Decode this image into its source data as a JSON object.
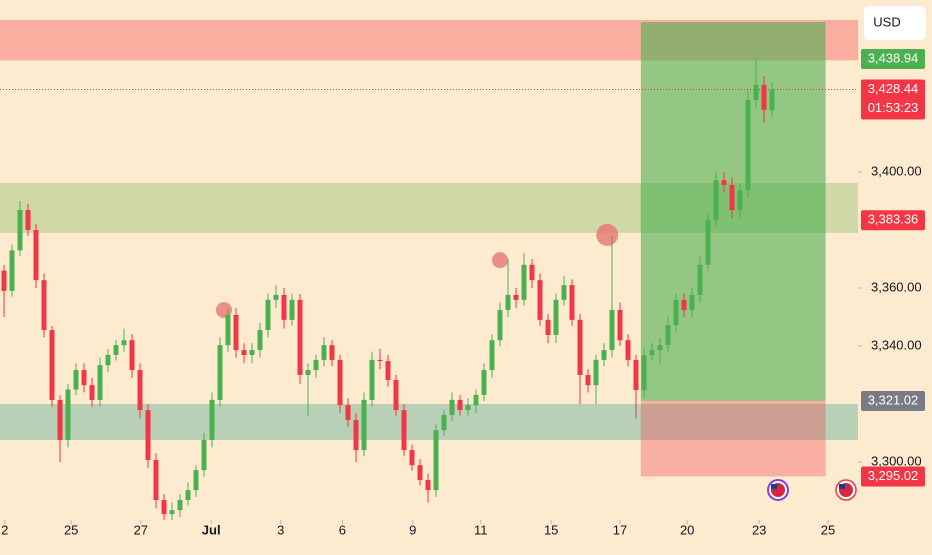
{
  "chart_data": {
    "type": "candlestick",
    "currency": "USD",
    "countdown": "01:53:23",
    "up_color": "#4caf50",
    "down_color": "#f23645",
    "xlim": [
      -0.5,
      106.75
    ],
    "ylim": [
      3280,
      3459.3
    ],
    "xticks": [
      {
        "value": 0.1,
        "label": "2"
      },
      {
        "value": 8.4,
        "label": "25"
      },
      {
        "value": 17.1,
        "label": "27"
      },
      {
        "value": 25.9,
        "label": "Jul"
      },
      {
        "value": 34.6,
        "label": "3"
      },
      {
        "value": 42.3,
        "label": "6"
      },
      {
        "value": 51.1,
        "label": "9"
      },
      {
        "value": 59.6,
        "label": "11"
      },
      {
        "value": 68.4,
        "label": "15"
      },
      {
        "value": 77,
        "label": "17"
      },
      {
        "value": 85.4,
        "label": "20"
      },
      {
        "value": 94.4,
        "label": "23"
      },
      {
        "value": 103,
        "label": "25"
      }
    ],
    "yticks": [
      {
        "value": 3400,
        "label": "3,400.00"
      },
      {
        "value": 3360,
        "label": "3,360.00"
      },
      {
        "value": 3340,
        "label": "3,340.00"
      },
      {
        "value": 3300,
        "label": "3,300.00"
      }
    ],
    "ohlc": [
      [
        3366,
        3368,
        3350,
        3359
      ],
      [
        3359,
        3375,
        3357,
        3373
      ],
      [
        3373,
        3390,
        3371,
        3386.9
      ],
      [
        3386.9,
        3389,
        3378,
        3380
      ],
      [
        3380,
        3382,
        3360,
        3362.7
      ],
      [
        3362.7,
        3365,
        3343,
        3345.5
      ],
      [
        3345.5,
        3347,
        3319,
        3321.4
      ],
      [
        3321.4,
        3323,
        3300,
        3307.6
      ],
      [
        3307.6,
        3327,
        3305,
        3325
      ],
      [
        3325,
        3334,
        3323,
        3331.7
      ],
      [
        3331.7,
        3334,
        3324,
        3326.5
      ],
      [
        3326.5,
        3329,
        3319,
        3321.4
      ],
      [
        3321.4,
        3336,
        3319,
        3333.4
      ],
      [
        3333.4,
        3339,
        3331,
        3336.9
      ],
      [
        3336.9,
        3342,
        3335,
        3340.3
      ],
      [
        3340.3,
        3346,
        3338,
        3342
      ],
      [
        3342,
        3344,
        3329,
        3331.7
      ],
      [
        3331.7,
        3334,
        3315,
        3317.9
      ],
      [
        3317.9,
        3320,
        3298,
        3300.7
      ],
      [
        3300.7,
        3303,
        3284,
        3286.9
      ],
      [
        3286.9,
        3289,
        3280,
        3282
      ],
      [
        3282,
        3286,
        3280,
        3283.4
      ],
      [
        3283.4,
        3289,
        3281,
        3286.9
      ],
      [
        3286.9,
        3293,
        3285,
        3290.3
      ],
      [
        3290.3,
        3299,
        3288,
        3297.2
      ],
      [
        3297.2,
        3310,
        3295,
        3307.6
      ],
      [
        3307.6,
        3324,
        3305,
        3321.4
      ],
      [
        3321.4,
        3343,
        3319,
        3340.3
      ],
      [
        3340.3,
        3353,
        3338,
        3350.7
      ],
      [
        3350.7,
        3353,
        3336,
        3338.6
      ],
      [
        3338.6,
        3341,
        3334,
        3336.9
      ],
      [
        3336.9,
        3341,
        3334,
        3338.6
      ],
      [
        3338.6,
        3348,
        3336,
        3345.5
      ],
      [
        3345.5,
        3358,
        3343,
        3355.9
      ],
      [
        3355.9,
        3361,
        3353,
        3357.6
      ],
      [
        3357.6,
        3360,
        3346,
        3349
      ],
      [
        3349,
        3358,
        3347,
        3355.9
      ],
      [
        3355.9,
        3358,
        3327,
        3330
      ],
      [
        3330,
        3334,
        3316,
        3331.7
      ],
      [
        3331.7,
        3337,
        3329,
        3335.2
      ],
      [
        3335.2,
        3343,
        3333,
        3340.3
      ],
      [
        3340.3,
        3342,
        3333,
        3335.2
      ],
      [
        3335.2,
        3337,
        3317,
        3319.6
      ],
      [
        3319.6,
        3322,
        3312,
        3314.5
      ],
      [
        3314.5,
        3317,
        3300,
        3304.1
      ],
      [
        3304.1,
        3324,
        3302,
        3321.4
      ],
      [
        3321.4,
        3338,
        3319,
        3335.2
      ],
      [
        3335.2,
        3339,
        3332,
        3334.8
      ],
      [
        3334.8,
        3337,
        3326,
        3328.3
      ],
      [
        3328.3,
        3330,
        3316,
        3317.9
      ],
      [
        3317.9,
        3320,
        3302,
        3304.1
      ],
      [
        3304.1,
        3306,
        3297,
        3298.9
      ],
      [
        3298.9,
        3301,
        3292,
        3293.8
      ],
      [
        3293.8,
        3296,
        3286,
        3290.3
      ],
      [
        3290.3,
        3313,
        3288,
        3311
      ],
      [
        3311,
        3318,
        3309,
        3316.2
      ],
      [
        3316.2,
        3324,
        3314,
        3321.4
      ],
      [
        3321.4,
        3323,
        3316,
        3317.9
      ],
      [
        3317.9,
        3322,
        3316,
        3319.6
      ],
      [
        3319.6,
        3325,
        3317,
        3323.1
      ],
      [
        3323.1,
        3334,
        3321,
        3331.7
      ],
      [
        3331.7,
        3344,
        3329,
        3342
      ],
      [
        3342,
        3355,
        3340,
        3352.4
      ],
      [
        3352.4,
        3370,
        3350,
        3357.6
      ],
      [
        3357.6,
        3360,
        3353,
        3355.9
      ],
      [
        3355.9,
        3372,
        3354,
        3368
      ],
      [
        3368,
        3370,
        3360,
        3362.7
      ],
      [
        3362.7,
        3365,
        3347,
        3349
      ],
      [
        3349,
        3351,
        3341,
        3343.8
      ],
      [
        3343.8,
        3358,
        3341,
        3355.9
      ],
      [
        3355.9,
        3364,
        3354,
        3361
      ],
      [
        3361,
        3363,
        3347,
        3349
      ],
      [
        3349,
        3351,
        3320,
        3330
      ],
      [
        3330,
        3332,
        3324,
        3326.5
      ],
      [
        3326.5,
        3337,
        3320,
        3335.2
      ],
      [
        3335.2,
        3341,
        3333,
        3338.6
      ],
      [
        3338.6,
        3378,
        3336,
        3352.4
      ],
      [
        3352.4,
        3355,
        3340,
        3342
      ],
      [
        3342,
        3344,
        3333,
        3335.2
      ],
      [
        3335.2,
        3337,
        3315,
        3324.8
      ],
      [
        3324.8,
        3339,
        3322,
        3336.9
      ],
      [
        3336.9,
        3341,
        3335,
        3338.6
      ],
      [
        3338.6,
        3343,
        3334,
        3340.3
      ],
      [
        3340.3,
        3350,
        3338,
        3347.2
      ],
      [
        3347.2,
        3358,
        3345,
        3355.9
      ],
      [
        3355.9,
        3358,
        3350,
        3352.4
      ],
      [
        3352.4,
        3360,
        3350,
        3357.6
      ],
      [
        3357.6,
        3371,
        3355,
        3368
      ],
      [
        3368,
        3386,
        3366,
        3383.4
      ],
      [
        3383.4,
        3400,
        3381,
        3397.2
      ],
      [
        3397.2,
        3400,
        3393,
        3395.5
      ],
      [
        3395.5,
        3398,
        3384,
        3386.9
      ],
      [
        3386.9,
        3396,
        3384,
        3393.8
      ],
      [
        3393.8,
        3428,
        3391,
        3424.8
      ],
      [
        3424.8,
        3438.9,
        3422,
        3430
      ],
      [
        3430,
        3433,
        3417,
        3421.4
      ],
      [
        3421.4,
        3431,
        3419,
        3428.44
      ]
    ],
    "zones": [
      {
        "lo": 3438.5,
        "hi": 3452.4,
        "color": "rgba(248,90,90,0.42)"
      },
      {
        "lo": 3379,
        "hi": 3396.2,
        "color": "rgba(110,180,80,0.32)"
      },
      {
        "lo": 3307.6,
        "hi": 3320,
        "color": "rgba(70,165,140,0.38)"
      }
    ],
    "position": {
      "x0": 79.6,
      "x1": 102.7,
      "entry": 3321.02,
      "target": 3451.7,
      "stop": 3295.02,
      "profit_color": "rgba(76,175,80,0.6)",
      "loss_color": "rgba(242,54,69,0.32)"
    },
    "markers": [
      {
        "x": 27.5,
        "y": 3352.4,
        "r": 8
      },
      {
        "x": 62,
        "y": 3369.6,
        "r": 8
      },
      {
        "x": 75.4,
        "y": 3378.3,
        "r": 11
      }
    ],
    "price_labels": [
      {
        "value": 3438.94,
        "label": "3,438.94",
        "color": "#4caf50"
      },
      {
        "value": 3428.44,
        "label": "3,428.44",
        "color": "#f23645"
      },
      {
        "value": 3383.36,
        "label": "3,383.36",
        "color": "#f23645"
      },
      {
        "value": 3321.02,
        "label": "3,321.02",
        "color": "#787b86"
      },
      {
        "value": 3295.02,
        "label": "3,295.02",
        "color": "#f23645"
      }
    ],
    "last_price": 3428.44
  }
}
